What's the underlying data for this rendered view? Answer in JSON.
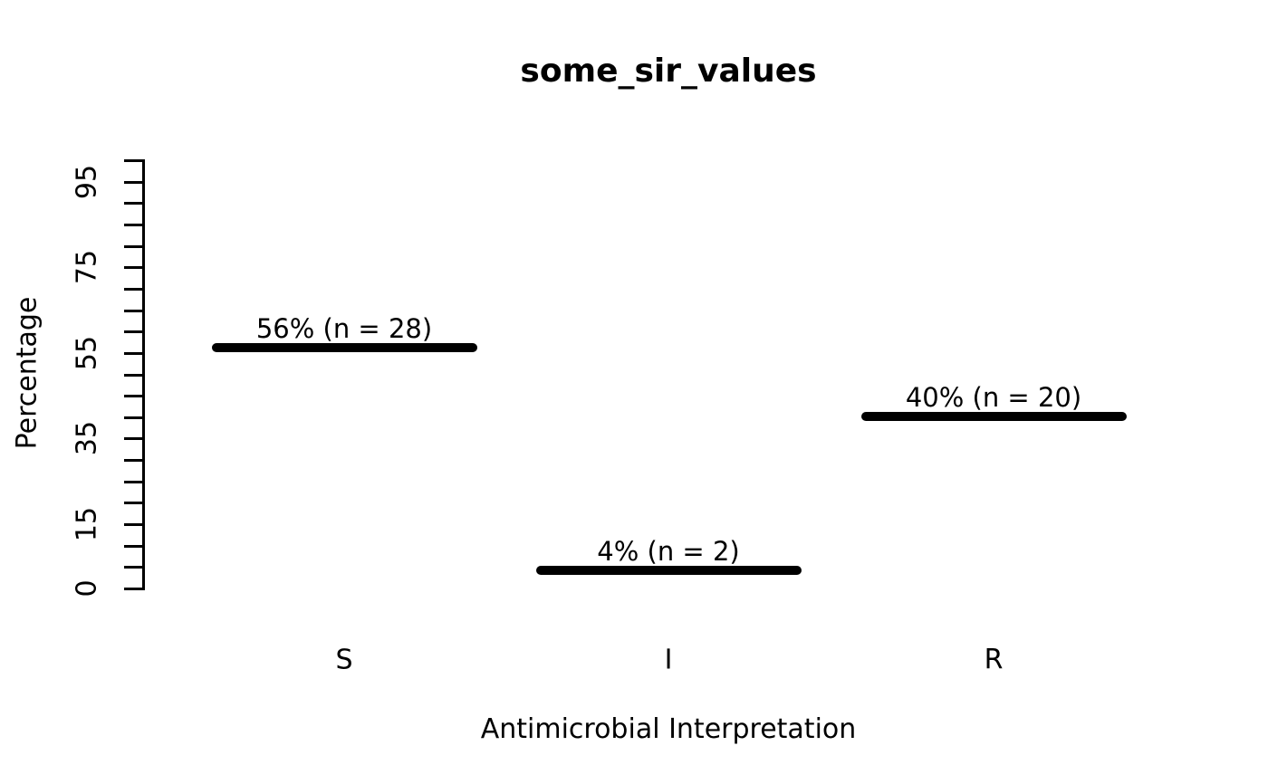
{
  "title": "some_sir_values",
  "chart_data": {
    "type": "bar",
    "style": "horizontal-segment-marks",
    "title": "some_sir_values",
    "xlabel": "Antimicrobial Interpretation",
    "ylabel": "Percentage",
    "categories": [
      "S",
      "I",
      "R"
    ],
    "values": [
      56,
      4,
      40
    ],
    "counts": [
      28,
      2,
      20
    ],
    "bar_labels": [
      "56% (n = 28)",
      "4% (n = 2)",
      "40% (n = 20)"
    ],
    "ylim": [
      0,
      100
    ],
    "ytick_step": 5,
    "ytick_labeled": [
      0,
      15,
      35,
      55,
      75,
      95
    ],
    "grid": false,
    "legend": null,
    "bar_color": "#000000",
    "text_color": "#000000",
    "background_color": "#ffffff"
  }
}
